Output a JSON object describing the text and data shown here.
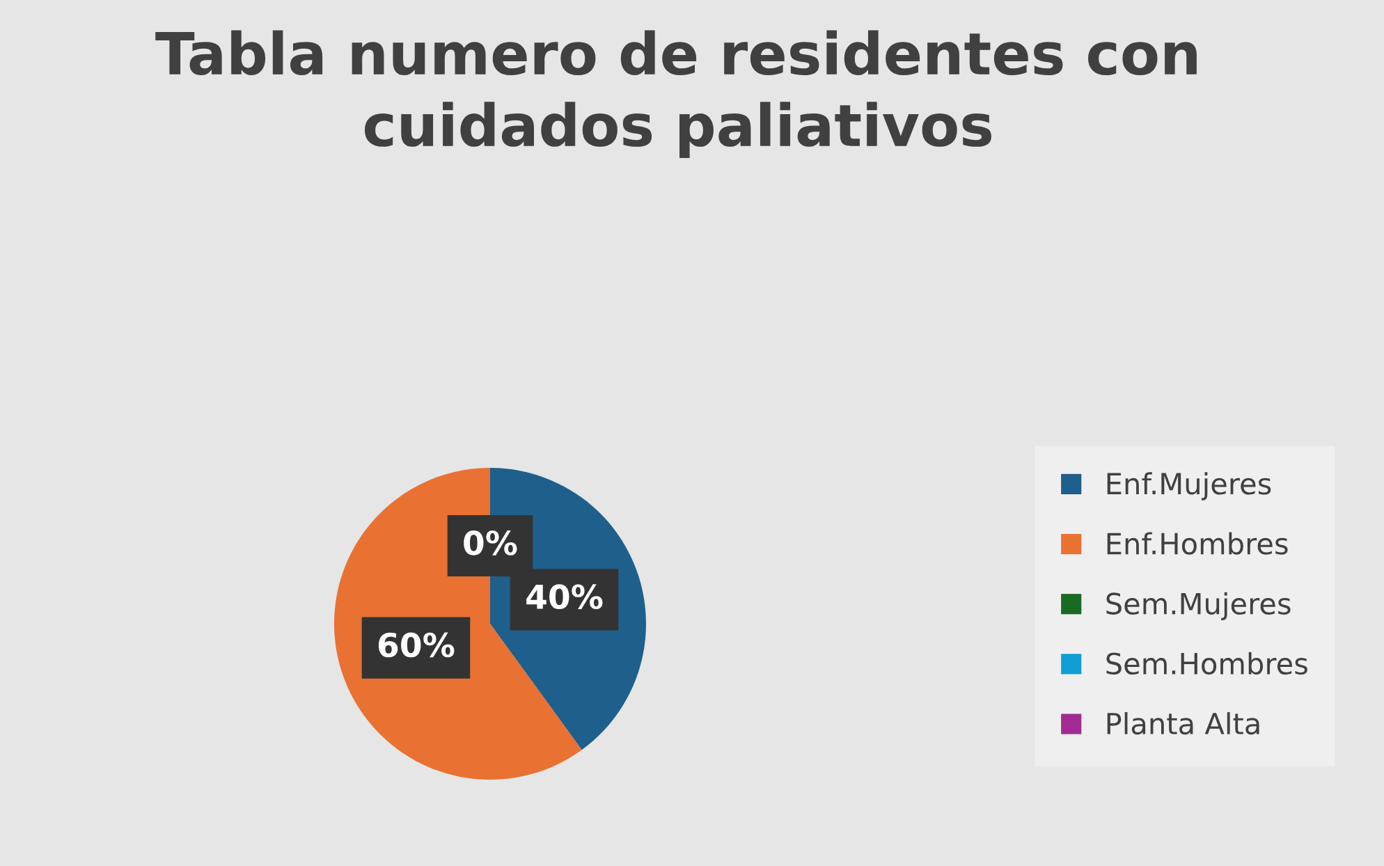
{
  "chart_data": {
    "type": "pie",
    "title": "Tabla numero de residentes con cuidados paliativos",
    "categories": [
      "Enf.Mujeres",
      "Enf.Hombres",
      "Sem.Mujeres",
      "Sem.Hombres",
      "Planta Alta"
    ],
    "values": [
      40,
      60,
      0,
      0,
      0
    ],
    "colors": [
      "#1f5f8b",
      "#e97132",
      "#196b24",
      "#0f9ed5",
      "#a02b93"
    ],
    "value_labels": [
      "40%",
      "60%",
      "0%",
      null,
      null
    ],
    "legend": "right"
  }
}
